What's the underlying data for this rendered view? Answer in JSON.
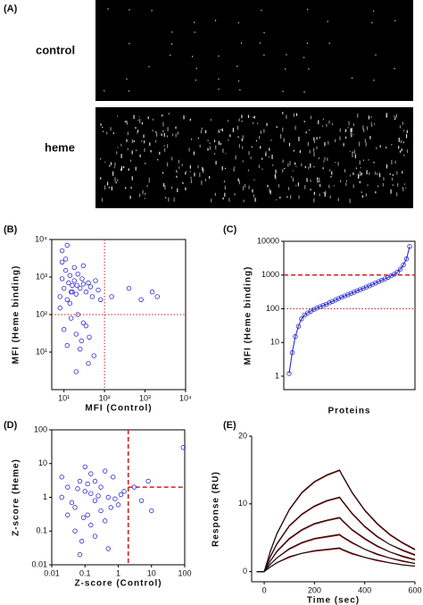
{
  "figure_a": {
    "panel": "(A)",
    "labels": [
      "control",
      "heme"
    ]
  },
  "chart_data": [
    {
      "type": "scatter",
      "panel": "(B)",
      "xlabel": "MFI (Control)",
      "ylabel": "MFI (Heme binding)",
      "xlog": true,
      "ylog": true,
      "frame": true,
      "color": "#2b2bd0",
      "xlim": [
        5,
        10000
      ],
      "ylim": [
        1,
        10000
      ],
      "xticks": [
        {
          "value": 10,
          "label": "10¹"
        },
        {
          "value": 100,
          "label": "10²"
        },
        {
          "value": 1000,
          "label": "10³"
        },
        {
          "value": 10000,
          "label": "10⁴"
        }
      ],
      "yticks": [
        {
          "value": 10,
          "label": "10¹"
        },
        {
          "value": 100,
          "label": "10²"
        },
        {
          "value": 1000,
          "label": "10³"
        },
        {
          "value": 10000,
          "label": "10⁴"
        }
      ],
      "ref_lines": [
        {
          "axis": "x",
          "value": 100,
          "style": "dotted",
          "color": "#d62020"
        },
        {
          "axis": "y",
          "value": 100,
          "style": "dotted",
          "color": "#d62020"
        }
      ],
      "x": [
        8,
        9,
        10,
        11,
        12,
        13,
        14,
        15,
        16,
        18,
        20,
        22,
        25,
        28,
        30,
        35,
        40,
        45,
        50,
        60,
        70,
        80,
        10,
        12,
        15,
        20,
        25,
        30,
        8,
        9,
        11,
        14,
        18,
        22,
        27,
        35,
        42,
        55,
        9,
        12,
        16,
        21,
        30,
        150,
        400,
        800,
        1500,
        2000,
        40,
        20
      ],
      "values": [
        300,
        900,
        500,
        1500,
        250,
        700,
        1100,
        400,
        600,
        800,
        350,
        1200,
        500,
        900,
        650,
        400,
        700,
        550,
        300,
        800,
        450,
        250,
        40,
        15,
        80,
        30,
        12,
        60,
        150,
        2500,
        3000,
        200,
        1800,
        100,
        20,
        50,
        25,
        8,
        5000,
        7000,
        400,
        600,
        2000,
        300,
        500,
        250,
        400,
        300,
        5,
        3
      ]
    },
    {
      "type": "line",
      "panel": "(C)",
      "xlabel": "Proteins",
      "ylabel": "MFI (Heme binding)",
      "ylog": true,
      "frame": true,
      "color": "#2b2bd0",
      "ylim": [
        0.4,
        10000
      ],
      "yticks": [
        1,
        10,
        100,
        1000,
        10000
      ],
      "ref_lines": [
        {
          "axis": "y",
          "value": 1000,
          "style": "dashed",
          "color": "#d62020"
        },
        {
          "axis": "y",
          "value": 100,
          "style": "dotted",
          "color": "#d62020"
        }
      ],
      "values": [
        1.2,
        5,
        15,
        30,
        50,
        65,
        75,
        85,
        95,
        105,
        115,
        125,
        135,
        150,
        165,
        180,
        200,
        220,
        240,
        260,
        285,
        310,
        340,
        370,
        400,
        440,
        480,
        530,
        580,
        640,
        700,
        770,
        850,
        950,
        1050,
        1200,
        1500,
        2000,
        3000,
        7000
      ]
    },
    {
      "type": "scatter",
      "panel": "(D)",
      "xlabel": "Z-score (Control)",
      "ylabel": "Z-score (Heme)",
      "xlog": true,
      "ylog": true,
      "frame": true,
      "color": "#2b2bd0",
      "xlim": [
        0.01,
        100
      ],
      "ylim": [
        0.01,
        100
      ],
      "xticks": [
        0.01,
        0.1,
        1,
        10,
        100
      ],
      "yticks": [
        0.01,
        0.1,
        1,
        10,
        100
      ],
      "ref_lines": [
        {
          "axis": "x",
          "value": 2,
          "style": "dashed",
          "color": "#d62020"
        },
        {
          "axis": "y",
          "value": 2,
          "from": 2,
          "style": "dashed",
          "color": "#d62020"
        }
      ],
      "x": [
        0.02,
        0.03,
        0.05,
        0.07,
        0.1,
        0.12,
        0.15,
        0.2,
        0.3,
        0.4,
        0.5,
        0.7,
        1,
        1.2,
        0.05,
        0.08,
        0.1,
        0.15,
        0.2,
        0.3,
        0.5,
        0.04,
        0.06,
        0.09,
        0.12,
        0.25,
        0.6,
        0.8,
        1.5,
        3,
        5,
        8,
        90,
        0.03,
        0.2,
        0.4,
        0.07,
        0.15,
        10,
        0.02
      ],
      "values": [
        1,
        2,
        0.5,
        3,
        1.5,
        0.3,
        5,
        0.8,
        2,
        0.2,
        1,
        4,
        0.6,
        1.2,
        0.1,
        0.05,
        8,
        0.15,
        3,
        0.4,
        0.03,
        0.7,
        1.8,
        0.25,
        2.5,
        1.1,
        0.5,
        0.9,
        1.5,
        2,
        0.8,
        3,
        30,
        0.3,
        0.07,
        6,
        0.02,
        1.3,
        0.4,
        4
      ]
    },
    {
      "type": "line",
      "panel": "(E)",
      "xlabel": "Time (sec)",
      "ylabel": "Response (RU)",
      "frame": false,
      "xlim": [
        -50,
        600
      ],
      "ylim": [
        -1.5,
        20
      ],
      "xticks": [
        0,
        200,
        400,
        600
      ],
      "yticks": [
        0,
        10,
        20
      ],
      "x": [
        -30,
        0,
        25,
        50,
        100,
        150,
        200,
        250,
        300,
        310,
        350,
        400,
        450,
        500,
        550,
        600
      ],
      "series": [
        {
          "color": "#c00000",
          "values": [
            0,
            0,
            3.0,
            5.5,
            9.1,
            11.6,
            13.2,
            14.2,
            14.9,
            14.2,
            11.6,
            9.0,
            7.0,
            5.4,
            4.2,
            3.2
          ]
        },
        {
          "color": "#c00000",
          "values": [
            0,
            0,
            2.2,
            4.0,
            6.7,
            8.4,
            9.6,
            10.4,
            10.9,
            10.4,
            8.5,
            6.6,
            5.1,
            4.0,
            3.1,
            2.4
          ]
        },
        {
          "color": "#c00000",
          "values": [
            0,
            0,
            1.6,
            2.9,
            4.8,
            6.1,
            7.0,
            7.5,
            7.9,
            7.5,
            6.1,
            4.8,
            3.7,
            2.9,
            2.2,
            1.7
          ]
        },
        {
          "color": "#c00000",
          "values": [
            0,
            0,
            1.1,
            2.0,
            3.3,
            4.2,
            4.8,
            5.1,
            5.4,
            5.1,
            4.2,
            3.3,
            2.5,
            2.0,
            1.5,
            1.2
          ]
        },
        {
          "color": "#c00000",
          "values": [
            0,
            0,
            0.7,
            1.3,
            2.1,
            2.7,
            3.0,
            3.2,
            3.4,
            3.2,
            2.6,
            2.1,
            1.6,
            1.3,
            1.0,
            0.8
          ]
        },
        {
          "color": "#111111",
          "values": [
            0,
            0,
            3.1,
            5.6,
            9.2,
            11.7,
            13.3,
            14.3,
            15,
            14.3,
            11.7,
            9.1,
            7.1,
            5.5,
            4.3,
            3.3
          ]
        },
        {
          "color": "#111111",
          "values": [
            0,
            0,
            2.3,
            4.1,
            6.8,
            8.5,
            9.7,
            10.5,
            11,
            10.5,
            8.6,
            6.7,
            5.2,
            4,
            3.2,
            2.5
          ]
        },
        {
          "color": "#111111",
          "values": [
            0,
            0,
            1.6,
            3,
            4.9,
            6.2,
            7.1,
            7.6,
            8,
            7.6,
            6.2,
            4.9,
            3.8,
            2.9,
            2.3,
            1.8
          ]
        },
        {
          "color": "#111111",
          "values": [
            0,
            0,
            1.1,
            2,
            3.4,
            4.3,
            4.9,
            5.2,
            5.5,
            5.2,
            4.3,
            3.3,
            2.6,
            2,
            1.6,
            1.2
          ]
        },
        {
          "color": "#111111",
          "values": [
            0,
            0,
            0.7,
            1.3,
            2.2,
            2.7,
            3.1,
            3.3,
            3.5,
            3.3,
            2.7,
            2.1,
            1.7,
            1.3,
            1,
            0.8
          ]
        }
      ]
    }
  ]
}
